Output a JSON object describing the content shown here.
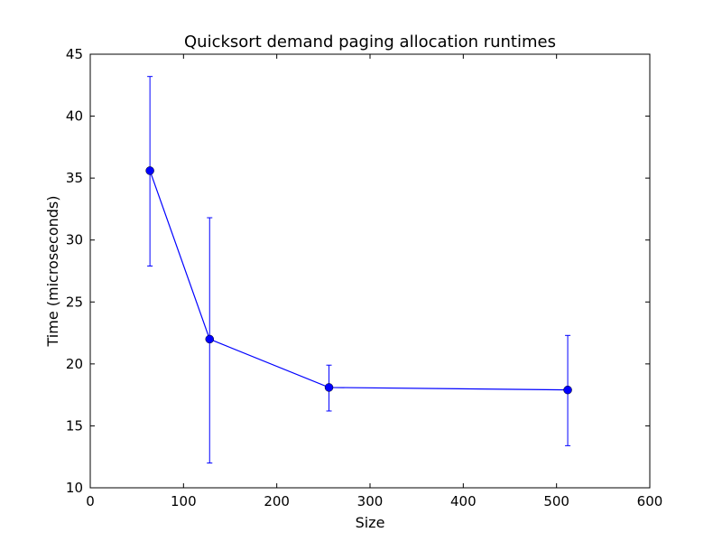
{
  "chart_data": {
    "type": "line",
    "title": "Quicksort demand paging allocation runtimes",
    "xlabel": "Size",
    "ylabel": "Time (microseconds)",
    "xlim": [
      0,
      600
    ],
    "ylim": [
      10,
      45
    ],
    "xticks": [
      0,
      100,
      200,
      300,
      400,
      500,
      600
    ],
    "yticks": [
      10,
      15,
      20,
      25,
      30,
      35,
      40,
      45
    ],
    "grid": false,
    "series": [
      {
        "x": [
          64,
          128,
          256,
          512
        ],
        "y": [
          35.6,
          22.0,
          18.1,
          17.9
        ],
        "err_low": [
          27.9,
          12.0,
          16.2,
          13.4
        ],
        "err_high": [
          43.2,
          31.8,
          19.9,
          22.3
        ],
        "color": "#0000ff"
      }
    ]
  }
}
